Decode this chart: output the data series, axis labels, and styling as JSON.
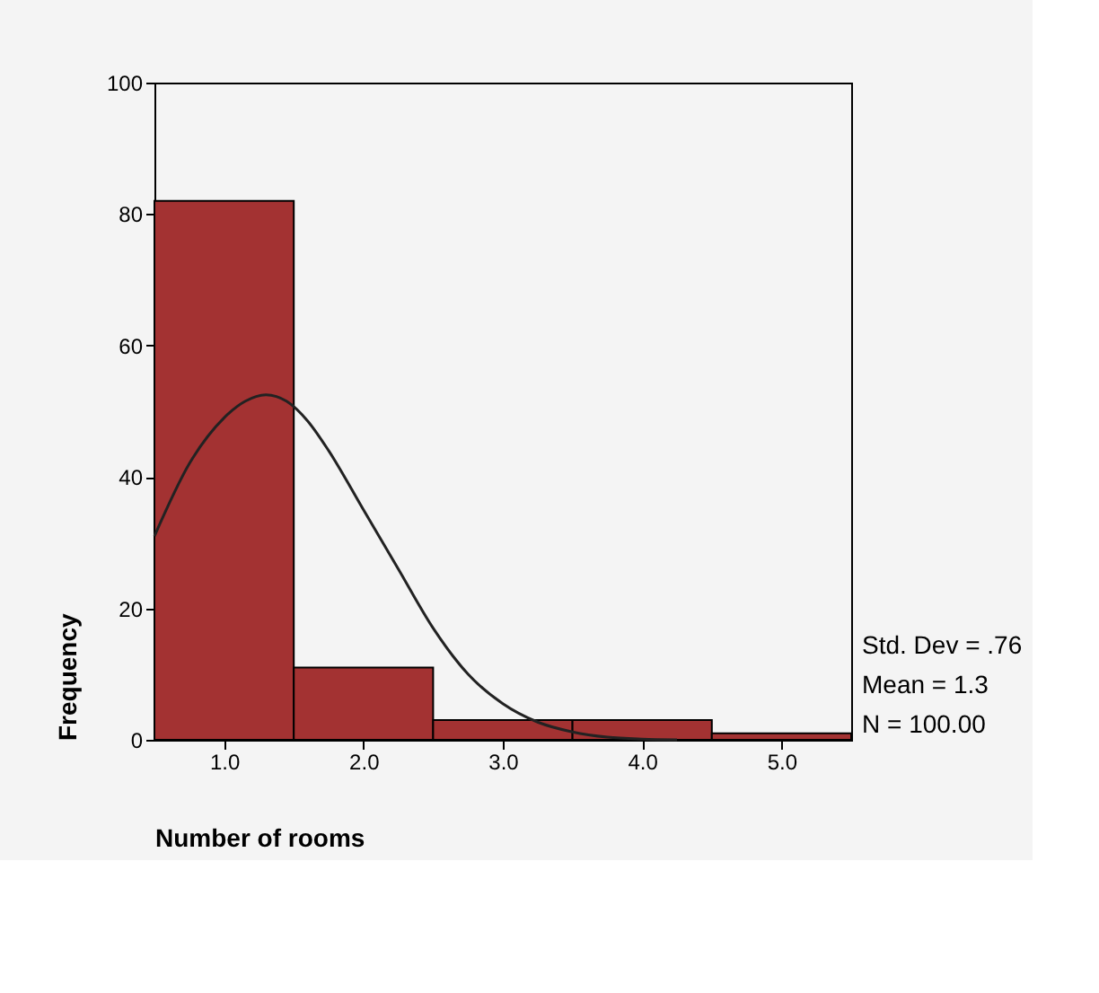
{
  "chart_data": {
    "type": "histogram",
    "xlabel": "Number of rooms",
    "ylabel": "Frequency",
    "xlim": [
      0.5,
      5.5
    ],
    "xticks": [
      {
        "value": 1,
        "label": "1.0"
      },
      {
        "value": 2,
        "label": "2.0"
      },
      {
        "value": 3,
        "label": "3.0"
      },
      {
        "value": 4,
        "label": "4.0"
      },
      {
        "value": 5,
        "label": "5.0"
      }
    ],
    "ylim": [
      0,
      100
    ],
    "yticks": [
      0,
      20,
      40,
      60,
      80,
      100
    ],
    "series": [
      {
        "color": "#a33232",
        "bins": [
          0.5,
          1.5,
          2.5,
          3.5,
          4.5,
          5.5
        ],
        "values": [
          82,
          11,
          3,
          3,
          1
        ]
      },
      {
        "type": "line",
        "color": "#222222",
        "x": [
          0.5,
          0.75,
          1.0,
          1.15,
          1.3,
          1.45,
          1.6,
          1.75,
          2.0,
          2.25,
          2.5,
          2.75,
          3.0,
          3.25,
          3.5,
          3.75,
          4.0,
          4.25
        ],
        "values": [
          31,
          42,
          49,
          51.5,
          52.5,
          51.5,
          48.5,
          44,
          35,
          26,
          17,
          10,
          5.5,
          2.7,
          1.2,
          0.4,
          0.1,
          0
        ]
      }
    ],
    "annotations": [
      "Std. Dev = .76",
      "Mean = 1.3",
      "N = 100.00"
    ]
  }
}
